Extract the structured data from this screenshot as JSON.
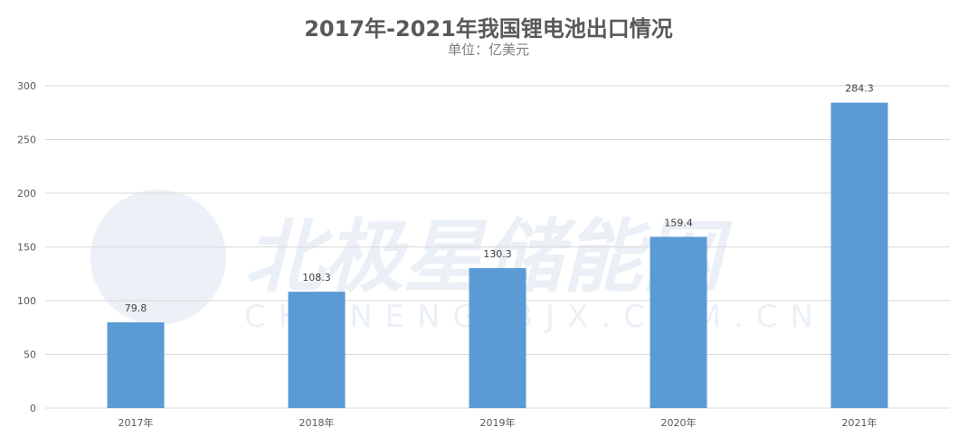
{
  "chart_data": {
    "type": "bar",
    "title": "2017年-2021年我国锂电池出口情况",
    "subtitle": "单位：亿美元",
    "categories": [
      "2017年",
      "2018年",
      "2019年",
      "2020年",
      "2021年"
    ],
    "values": [
      79.8,
      108.3,
      130.3,
      159.4,
      284.3
    ],
    "ylim": [
      0,
      300
    ],
    "yticks": [
      0,
      50,
      100,
      150,
      200,
      250,
      300
    ],
    "grid": true,
    "legend": "none",
    "bar_color": "#5b9bd5"
  },
  "watermark": {
    "text": "北极星储能网",
    "subtext": "CHUNENG.BJX.COM.CN"
  }
}
